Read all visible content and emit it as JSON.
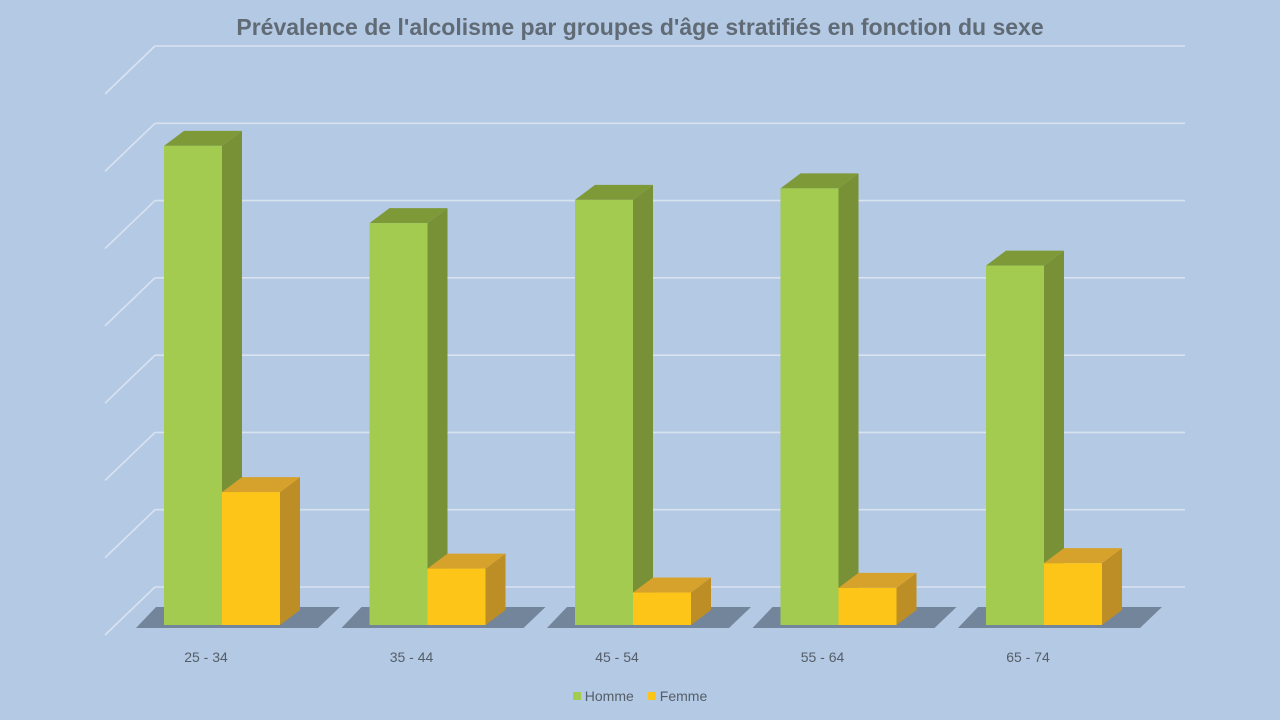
{
  "chart_data": {
    "type": "bar",
    "title": "Prévalence de l'alcolisme par groupes d'âge stratifiés en fonction du sexe",
    "categories": [
      "25 - 34",
      "35 - 44",
      "45 - 54",
      "55 - 64",
      "65 - 74"
    ],
    "series": [
      {
        "name": "Homme",
        "values": [
          6.2,
          5.2,
          5.5,
          5.65,
          4.65
        ],
        "color": "#a2cb4f",
        "side_color": "#789036",
        "top_color": "#7e9a38"
      },
      {
        "name": "Femme",
        "values": [
          1.72,
          0.73,
          0.42,
          0.48,
          0.8
        ],
        "color": "#fcc518",
        "side_color": "#bd8e25",
        "top_color": "#d7a22c"
      }
    ],
    "ylim": [
      0,
      7
    ],
    "grid": true,
    "legend_position": "bottom",
    "axis_tick_labels_visible": false,
    "background": "#b4c9e4"
  }
}
